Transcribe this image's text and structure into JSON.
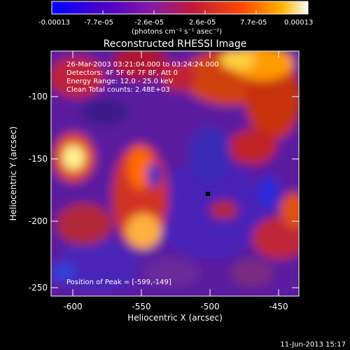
{
  "colorbar": {
    "ticks": [
      "-0.00013",
      "-7.7e-05",
      "-2.6e-05",
      "2.6e-05",
      "7.7e-05",
      "0.00013"
    ],
    "unit_label": "(photons cm⁻² s⁻¹ asec⁻²)",
    "colors": [
      "#0000ff",
      "#4a00c8",
      "#8a1aa0",
      "#c01a3a",
      "#ff4a00",
      "#ffb400",
      "#ffffff"
    ]
  },
  "title": "Reconstructed RHESSI Image",
  "info": {
    "line1": "26-Mar-2003 03:21:04.000 to 03:24:24.000",
    "line2": "Detectors: 4F 5F 6F 7F 8F, Att 0",
    "line3": "Energy Range: 12.0 - 25.0 keV",
    "line4": "Clean     Total counts: 2.48E+03"
  },
  "peak_text": "Position of Peak = [-599,-149]",
  "axes": {
    "xlabel": "Heliocentric X (arcsec)",
    "ylabel": "Heliocentric Y (arcsec)",
    "xticks": [
      "-600",
      "-550",
      "-500",
      "-450"
    ],
    "yticks": [
      "-100",
      "-150",
      "-200",
      "-250"
    ]
  },
  "footer_date": "11-Jun-2013 15:17"
}
